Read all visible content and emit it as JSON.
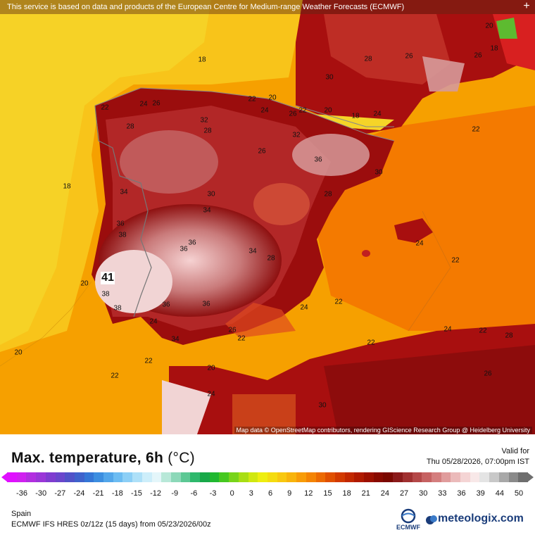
{
  "header": {
    "disclaimer": "This service is based on data and products of the European Centre for Medium-range Weather Forecasts (ECMWF)",
    "zoom_symbol": "+",
    "attribution": "Map data © OpenStreetMap contributors, rendering GIScience Research Group @ Heidelberg University"
  },
  "map_labels": {
    "l18_a": "18",
    "l18_b": "18",
    "l18_c": "18",
    "l18_d": "18",
    "l20_a": "20",
    "l20_b": "20",
    "l20_c": "20",
    "l20_d": "20",
    "l20_e": "20",
    "l20_f": "20",
    "l22_a": "22",
    "l22_b": "22",
    "l22_c": "22",
    "l22_d": "22",
    "l22_e": "22",
    "l22_f": "22",
    "l22_g": "22",
    "l22_h": "22",
    "l22_i": "22",
    "l22_j": "22",
    "l22_k": "22",
    "l24_a": "24",
    "l24_b": "24",
    "l24_c": "24",
    "l24_d": "24",
    "l24_e": "24",
    "l24_f": "24",
    "l24_g": "24",
    "l24_h": "24",
    "l26_a": "26",
    "l26_b": "26",
    "l26_c": "26",
    "l26_d": "26",
    "l26_e": "26",
    "l26_f": "26",
    "l26_g": "26",
    "l28_a": "28",
    "l28_b": "28",
    "l28_c": "28",
    "l28_d": "28",
    "l28_e": "28",
    "l28_f": "28",
    "l30_a": "30",
    "l30_b": "30",
    "l30_c": "30",
    "l30_d": "30",
    "l32_a": "32",
    "l32_b": "32",
    "l34_a": "34",
    "l34_b": "34",
    "l34_c": "34",
    "l34_d": "34",
    "l36_a": "36",
    "l36_b": "36",
    "l36_c": "36",
    "l36_d": "36",
    "l36_e": "36",
    "l36_f": "36",
    "l38_a": "38",
    "l38_b": "38",
    "l38_c": "38",
    "l41": "41"
  },
  "panel": {
    "title": "Max. temperature, 6h",
    "unit": "(°C)",
    "valid_label": "Valid for",
    "valid_value": "Thu 05/28/2026, 07:00pm IST",
    "region": "Spain",
    "model": "ECMWF IFS HRES 0z/12z (15 days) from 05/23/2026/00z",
    "ecmwf_text": "ECMWF",
    "brand": "meteologix.com"
  },
  "legend": {
    "ticks": [
      "-36",
      "-30",
      "-27",
      "-24",
      "-21",
      "-18",
      "-15",
      "-12",
      "-9",
      "-6",
      "-3",
      "0",
      "3",
      "6",
      "9",
      "12",
      "15",
      "18",
      "21",
      "24",
      "27",
      "30",
      "33",
      "36",
      "39",
      "44",
      "50"
    ],
    "colors": [
      "#e010ff",
      "#d020f0",
      "#b22ee0",
      "#9a36d8",
      "#7f3cd0",
      "#6a46cc",
      "#5052c8",
      "#3e62cc",
      "#3476d6",
      "#3c8ee0",
      "#52a6ea",
      "#6cbcf2",
      "#8ccff6",
      "#aee0f8",
      "#cdeefa",
      "#e4f6fa",
      "#b8e8d8",
      "#8cd8b8",
      "#5cc894",
      "#2eb86c",
      "#18a848",
      "#20b830",
      "#46c820",
      "#78d41a",
      "#a8de14",
      "#d0e810",
      "#eeee10",
      "#f4dc10",
      "#f8c810",
      "#f8b40c",
      "#f89c08",
      "#f48404",
      "#ec6a02",
      "#e05000",
      "#d23a00",
      "#c22800",
      "#b01a00",
      "#9c1000",
      "#880a00",
      "#7a0800",
      "#8a1a1a",
      "#a03030",
      "#b44848",
      "#c66262",
      "#d47e7e",
      "#e09c9c",
      "#ebbaba",
      "#f4d4d4",
      "#f8e8e8",
      "#e4e4e4",
      "#c8c8c8",
      "#a8a8a8",
      "#8a8a8a",
      "#6e6e6e"
    ]
  }
}
